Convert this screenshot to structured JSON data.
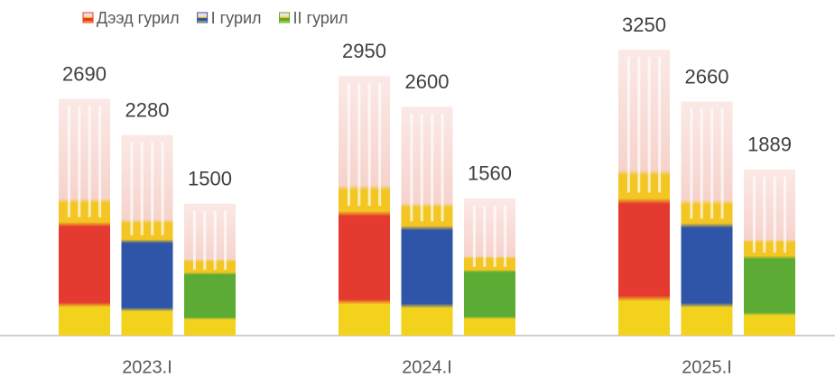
{
  "chart_data": {
    "type": "bar",
    "categories": [
      "2023.I",
      "2024.I",
      "2025.I"
    ],
    "series": [
      {
        "name": "Дээд гурил",
        "color": "#e53a2f",
        "values": [
          2690,
          2950,
          3250
        ]
      },
      {
        "name": "I гурил",
        "color": "#2f55a8",
        "values": [
          2280,
          2600,
          2660
        ]
      },
      {
        "name": "II гурил",
        "color": "#5bab35",
        "values": [
          1500,
          1560,
          1889
        ]
      }
    ],
    "legend": "top-left"
  }
}
